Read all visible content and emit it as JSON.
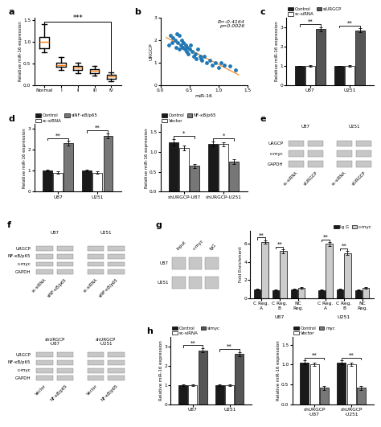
{
  "chart_data": [
    {
      "type": "box",
      "title": "a",
      "ylabel": "Relative miR-16 expression",
      "categories": [
        "Normal",
        "I",
        "II",
        "III",
        "IV"
      ],
      "q1": [
        0.85,
        0.42,
        0.35,
        0.28,
        0.15
      ],
      "median": [
        1.0,
        0.47,
        0.4,
        0.33,
        0.2
      ],
      "q3": [
        1.1,
        0.52,
        0.45,
        0.38,
        0.25
      ],
      "whislo": [
        0.75,
        0.35,
        0.28,
        0.22,
        0.1
      ],
      "whishi": [
        1.4,
        0.65,
        0.52,
        0.45,
        0.3
      ],
      "ylim": [
        0.0,
        1.55
      ],
      "yticks": [
        0.0,
        0.5,
        1.0,
        1.5
      ],
      "annotations": [
        {
          "text": "***",
          "from": "Normal",
          "to": "IV",
          "y": 1.45
        }
      ]
    },
    {
      "type": "scatter",
      "title": "b",
      "xlabel": "miR-16",
      "ylabel": "URGCP",
      "x": [
        0.15,
        0.18,
        0.2,
        0.22,
        0.25,
        0.27,
        0.28,
        0.3,
        0.32,
        0.33,
        0.35,
        0.37,
        0.38,
        0.4,
        0.42,
        0.43,
        0.45,
        0.47,
        0.48,
        0.5,
        0.52,
        0.55,
        0.57,
        0.6,
        0.62,
        0.65,
        0.68,
        0.7,
        0.72,
        0.75,
        0.8,
        0.85,
        0.9,
        0.95,
        1.0,
        1.05,
        1.1,
        1.2,
        1.3
      ],
      "values": [
        1.8,
        2.2,
        1.9,
        2.1,
        2.0,
        1.7,
        2.3,
        1.9,
        1.6,
        2.2,
        1.8,
        2.0,
        1.7,
        1.9,
        1.6,
        1.8,
        1.5,
        1.7,
        1.4,
        1.6,
        1.8,
        1.5,
        1.3,
        1.4,
        1.2,
        1.6,
        1.3,
        1.2,
        1.1,
        1.3,
        1.0,
        1.1,
        0.9,
        1.0,
        0.8,
        1.0,
        0.9,
        0.85,
        0.7
      ],
      "fit": {
        "x": [
          0.1,
          1.35
        ],
        "values": [
          2.1283,
          0.4702
        ]
      },
      "xlim": [
        0.0,
        1.5
      ],
      "ylim": [
        0.0,
        3.0
      ],
      "xticks": [
        0.0,
        0.5,
        1.0,
        1.5
      ],
      "yticks": [
        0,
        1,
        2,
        3
      ],
      "annotation": "R=-0.4164\np=0.0026"
    },
    {
      "type": "bar",
      "title": "c",
      "ylabel": "Relative miR-16 expression",
      "categories": [
        "U87",
        "U251"
      ],
      "series": [
        {
          "name": "Control",
          "color": "#1a1a1a",
          "values": [
            1.0,
            1.0
          ],
          "errors": [
            0.0,
            0.0
          ]
        },
        {
          "name": "sc-siRNA",
          "color": "#ffffff",
          "values": [
            1.0,
            1.0
          ],
          "errors": [
            0.05,
            0.05
          ]
        },
        {
          "name": "siURGCP",
          "color": "#555555",
          "values": [
            2.9,
            2.85
          ],
          "errors": [
            0.12,
            0.1
          ]
        }
      ],
      "ylim": [
        0,
        3.5
      ],
      "yticks": [
        0,
        1,
        2,
        3
      ],
      "significance": [
        "**",
        "**"
      ]
    },
    {
      "type": "bar",
      "title": "d",
      "ylabel": "Relative miR-16 expression",
      "categories": [
        "U87",
        "U251"
      ],
      "series": [
        {
          "name": "Control",
          "color": "#1a1a1a",
          "values": [
            1.0,
            1.0
          ],
          "errors": [
            0.05,
            0.05
          ]
        },
        {
          "name": "sc-siRNA",
          "color": "#ffffff",
          "values": [
            0.9,
            0.9
          ],
          "errors": [
            0.05,
            0.05
          ]
        },
        {
          "name": "siNF-κB/p65",
          "color": "#777777",
          "values": [
            2.3,
            2.65
          ],
          "errors": [
            0.1,
            0.12
          ]
        }
      ],
      "ylim": [
        0,
        3.2
      ],
      "yticks": [
        0,
        1,
        2,
        3
      ],
      "significance": [
        "**",
        "**"
      ]
    },
    {
      "type": "bar",
      "ylabel": "Relative miR-16 expression",
      "categories": [
        "shURGCP-U87",
        "shURGCP-U251"
      ],
      "series": [
        {
          "name": "Control",
          "color": "#1a1a1a",
          "values": [
            1.25,
            1.2
          ],
          "errors": [
            0.08,
            0.07
          ]
        },
        {
          "name": "Vector",
          "color": "#ffffff",
          "values": [
            1.1,
            1.2
          ],
          "errors": [
            0.06,
            0.05
          ]
        },
        {
          "name": "NF-κB/p65",
          "color": "#777777",
          "values": [
            0.65,
            0.75
          ],
          "errors": [
            0.05,
            0.06
          ]
        }
      ],
      "ylim": [
        0,
        1.7
      ],
      "yticks": [
        0.0,
        0.5,
        1.0,
        1.5
      ],
      "significance": [
        "*",
        "*"
      ]
    },
    {
      "type": "blot",
      "title": "e",
      "rows": [
        "URGCP",
        "c-myc",
        "GAPDH"
      ],
      "groups": [
        {
          "name": "U87",
          "lanes": [
            "sc-siRNA",
            "siURGCP"
          ]
        },
        {
          "name": "U251",
          "lanes": [
            "sc-siRNA",
            "siURGCP"
          ]
        }
      ]
    },
    {
      "type": "blot",
      "title": "f",
      "rows": [
        "URGCP",
        "NF-κB/p65",
        "c-myc",
        "GAPDH"
      ],
      "groups": [
        {
          "name": "U87",
          "lanes": [
            "sc-siRNA",
            "siNF-κB/p65"
          ]
        },
        {
          "name": "U251",
          "lanes": [
            "sc-siRNA",
            "siNF-κB/p65"
          ]
        }
      ]
    },
    {
      "type": "blot",
      "title": "g",
      "rows": [
        "U87",
        "U251"
      ],
      "lanes": [
        "Input",
        "c-myc",
        "IgG"
      ]
    },
    {
      "type": "bar",
      "ylabel": "Fold Enrichment",
      "categories": [
        "C Reg.\nA",
        "C Reg.\nB",
        "NC\nReg.",
        "C Reg.\nA",
        "C Reg.\nB",
        "NC\nReg."
      ],
      "category_groups": [
        {
          "label": "U87",
          "size": 3
        },
        {
          "label": "U251",
          "size": 3
        }
      ],
      "series": [
        {
          "name": "Ig G",
          "color": "#1a1a1a",
          "values": [
            1.0,
            0.9,
            1.0,
            0.9,
            1.0,
            0.9
          ],
          "errors": [
            0.05,
            0.05,
            0.05,
            0.05,
            0.05,
            0.05
          ]
        },
        {
          "name": "c-myc",
          "color": "#cccccc",
          "values": [
            6.2,
            5.2,
            1.1,
            6.0,
            5.0,
            1.1
          ],
          "errors": [
            0.2,
            0.2,
            0.08,
            0.2,
            0.2,
            0.08
          ]
        }
      ],
      "ylim": [
        0,
        7.5
      ],
      "yticks": [
        0,
        2,
        4,
        6
      ],
      "significance": [
        "**",
        "**",
        null,
        "**",
        "**",
        null
      ]
    },
    {
      "type": "blot",
      "rows": [
        "URGCP",
        "NF-κB/p65",
        "c-myc",
        "GAPDH"
      ],
      "groups": [
        {
          "name": "shURGCP\n-U87",
          "lanes": [
            "Vector",
            "NF-κB/p65"
          ]
        },
        {
          "name": "shURGCP\n-U251",
          "lanes": [
            "Vector",
            "NF-κB/p65"
          ]
        }
      ]
    },
    {
      "type": "bar",
      "title": "h",
      "ylabel": "Relative miR-16 expression",
      "categories": [
        "U87",
        "U251"
      ],
      "series": [
        {
          "name": "Control",
          "color": "#1a1a1a",
          "values": [
            1.0,
            1.0
          ],
          "errors": [
            0.05,
            0.05
          ]
        },
        {
          "name": "sc-siRNA",
          "color": "#ffffff",
          "values": [
            1.0,
            1.0
          ],
          "errors": [
            0.05,
            0.05
          ]
        },
        {
          "name": "simyc",
          "color": "#555555",
          "values": [
            2.8,
            2.6
          ],
          "errors": [
            0.12,
            0.12
          ]
        }
      ],
      "ylim": [
        0,
        3.5
      ],
      "yticks": [
        0,
        1,
        2,
        3
      ],
      "significance": [
        "**",
        "**"
      ]
    },
    {
      "type": "bar",
      "ylabel": "Relative miR-16 expression",
      "categories": [
        "shURGCP\n-U87",
        "shURGCP\n-U251"
      ],
      "series": [
        {
          "name": "Control",
          "color": "#1a1a1a",
          "values": [
            1.05,
            1.05
          ],
          "errors": [
            0.05,
            0.05
          ]
        },
        {
          "name": "Vector",
          "color": "#ffffff",
          "values": [
            1.0,
            1.0
          ],
          "errors": [
            0.04,
            0.04
          ]
        },
        {
          "name": "myc",
          "color": "#777777",
          "values": [
            0.42,
            0.42
          ],
          "errors": [
            0.05,
            0.05
          ]
        }
      ],
      "ylim": [
        0,
        1.7
      ],
      "yticks": [
        0.0,
        0.5,
        1.0,
        1.5
      ],
      "significance": [
        "**",
        "**"
      ]
    }
  ]
}
